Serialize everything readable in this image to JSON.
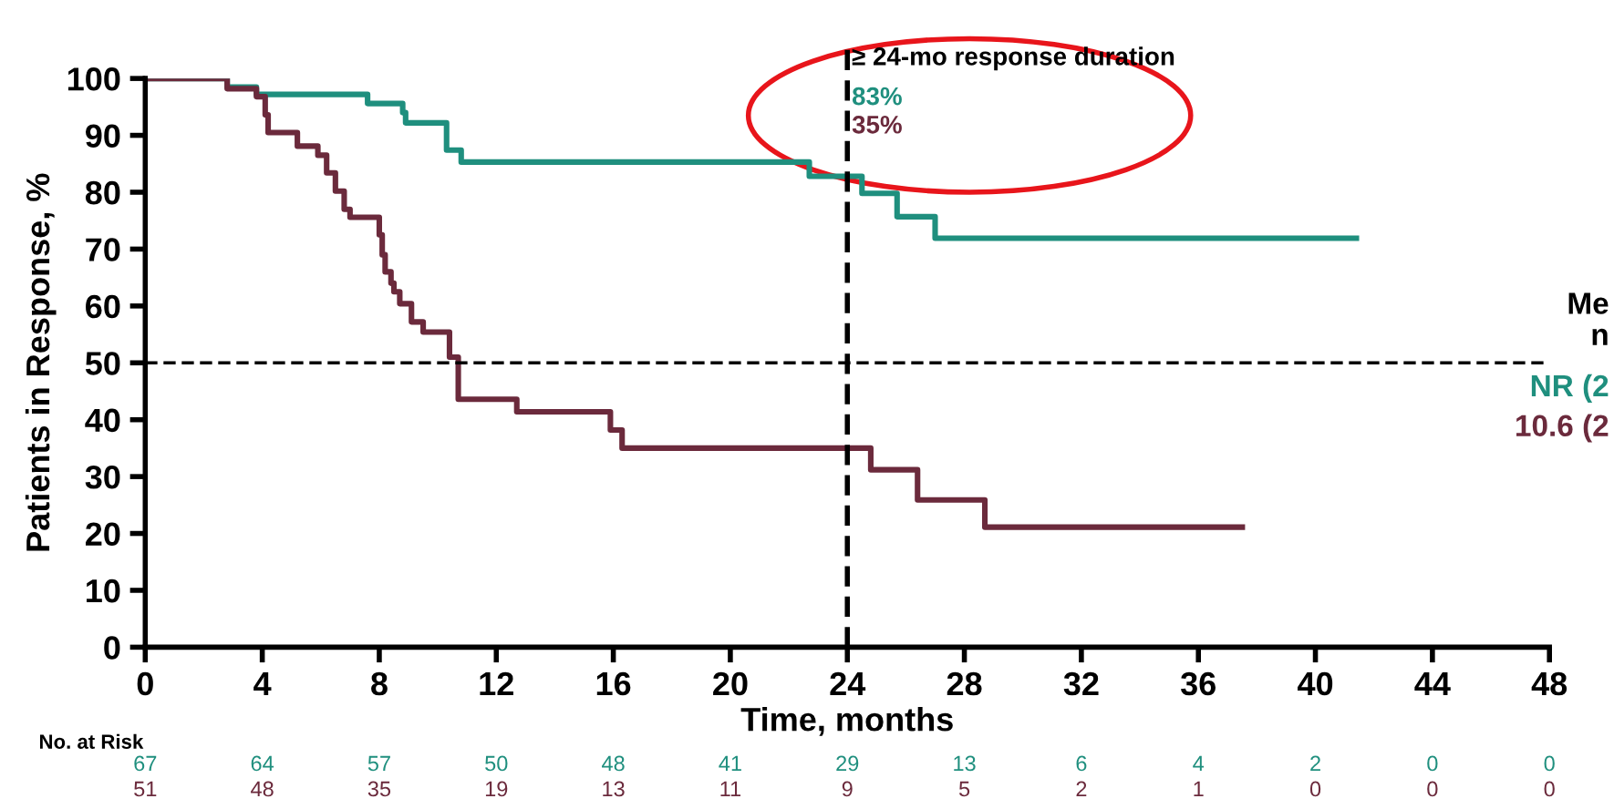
{
  "chart_data": {
    "type": "step",
    "xlabel": "Time, months",
    "ylabel": "Patients in Response, %",
    "xlim": [
      0,
      48
    ],
    "xticks": [
      0,
      4,
      8,
      12,
      16,
      20,
      24,
      28,
      32,
      36,
      40,
      44,
      48
    ],
    "ylim": [
      0,
      100
    ],
    "yticks": [
      0,
      10,
      20,
      30,
      40,
      50,
      60,
      70,
      80,
      90,
      100
    ],
    "grid": false,
    "legend": false,
    "marker": "none",
    "line_style": "solid",
    "series": [
      {
        "color": "#1f8f7e",
        "x": [
          0,
          2.8,
          3.8,
          7.6,
          8.8,
          8.9,
          10.3,
          10.8,
          22.7,
          24.5,
          25.7,
          27.0,
          41.4
        ],
        "values": [
          100,
          98.5,
          97.2,
          95.6,
          94.0,
          92.2,
          87.4,
          85.3,
          82.8,
          79.8,
          75.7,
          71.9,
          71.9
        ]
      },
      {
        "color": "#6b2a3c",
        "x": [
          0,
          2.8,
          3.8,
          4.1,
          4.2,
          5.2,
          5.9,
          6.2,
          6.5,
          6.8,
          7.0,
          8.0,
          8.1,
          8.2,
          8.4,
          8.5,
          8.7,
          9.1,
          9.5,
          10.4,
          10.7,
          12.7,
          15.9,
          16.3,
          24.8,
          26.4,
          28.7,
          37.5
        ],
        "values": [
          100,
          98.2,
          96.8,
          93.6,
          90.5,
          88.1,
          86.5,
          83.4,
          80.2,
          77.0,
          75.6,
          72.5,
          69.0,
          66.0,
          64.0,
          62.5,
          60.4,
          57.2,
          55.4,
          51.0,
          43.6,
          41.4,
          38.2,
          35.0,
          31.2,
          25.9,
          21.1,
          21.1
        ]
      }
    ],
    "ref_lines": [
      {
        "axis": "x",
        "value": 24,
        "label": "≥ 24-mo response duration",
        "color": "#000000",
        "line_style": "dashed"
      },
      {
        "axis": "y",
        "value": 50,
        "color": "#000000",
        "line_style": "dashed"
      }
    ],
    "annotations": [
      "83%",
      "35%",
      "No. at Risk",
      "67 64 57 50 48 41 29 13 6 4 2 0 0",
      "51 48 35 19 13 11 9 5 2 1 0 0 0",
      "Me",
      "n",
      "NR (2",
      "10.6 (2"
    ]
  }
}
